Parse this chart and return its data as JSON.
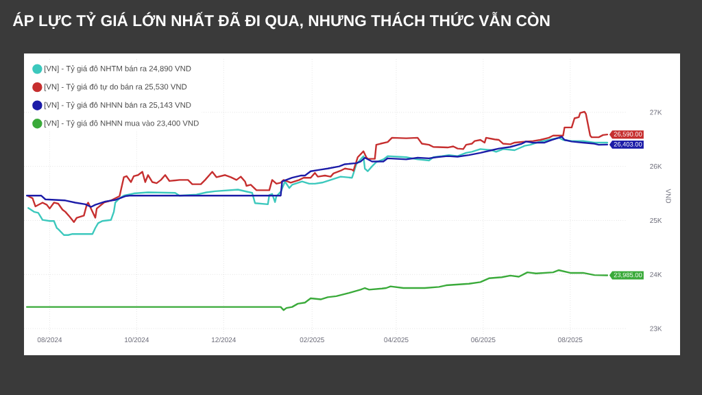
{
  "chart_data": {
    "type": "line",
    "title": "ÁP LỰC TỶ GIÁ LỚN NHẤT ĐÃ ĐI QUA, NHƯNG THÁCH THỨC VẪN CÒN",
    "ylabel": "VND",
    "xlim": [
      "2024-07-14",
      "2025-09-10"
    ],
    "ylim": [
      22900,
      28000
    ],
    "xticks": [
      {
        "value": "2024-08-01",
        "label": "08/2024"
      },
      {
        "value": "2024-10-01",
        "label": "10/2024"
      },
      {
        "value": "2024-12-01",
        "label": "12/2024"
      },
      {
        "value": "2025-02-01",
        "label": "02/2025"
      },
      {
        "value": "2025-04-01",
        "label": "04/2025"
      },
      {
        "value": "2025-06-01",
        "label": "06/2025"
      },
      {
        "value": "2025-08-01",
        "label": "08/2025"
      }
    ],
    "yticks": [
      {
        "value": 23000,
        "label": "23K"
      },
      {
        "value": 24000,
        "label": "24K"
      },
      {
        "value": 25000,
        "label": "25K"
      },
      {
        "value": 26000,
        "label": "26K"
      },
      {
        "value": 27000,
        "label": "27K"
      }
    ],
    "grid": true,
    "legend": "top left",
    "series": [
      {
        "name": "[VN] - Tỷ giá đô NHTM bán ra 24,890 VND",
        "color": "#3cc8bd",
        "x": [
          "2024-07-17",
          "2024-07-21",
          "2024-07-24",
          "2024-07-27",
          "2024-08-01",
          "2024-08-04",
          "2024-08-06",
          "2024-08-07",
          "2024-08-11",
          "2024-08-14",
          "2024-08-17",
          "2024-08-22",
          "2024-08-31",
          "2024-09-02",
          "2024-09-04",
          "2024-09-07",
          "2024-09-13",
          "2024-09-15",
          "2024-09-16",
          "2024-09-19",
          "2024-09-22",
          "2024-09-29",
          "2024-10-09",
          "2024-10-28",
          "2024-10-31",
          "2024-11-12",
          "2024-11-19",
          "2024-11-25",
          "2024-12-11",
          "2024-12-21",
          "2024-12-23",
          "2025-01-01",
          "2025-01-02",
          "2025-01-04",
          "2025-01-06",
          "2025-01-07",
          "2025-01-10",
          "2025-01-13",
          "2025-01-16",
          "2025-01-18",
          "2025-01-25",
          "2025-01-30",
          "2025-02-03",
          "2025-02-08",
          "2025-02-14",
          "2025-02-21",
          "2025-03-01",
          "2025-03-02",
          "2025-03-04",
          "2025-03-09",
          "2025-03-10",
          "2025-03-12",
          "2025-03-15",
          "2025-03-18",
          "2025-03-23",
          "2025-03-26",
          "2025-04-08",
          "2025-04-16",
          "2025-04-24",
          "2025-04-27",
          "2025-05-03",
          "2025-05-08",
          "2025-05-14",
          "2025-05-20",
          "2025-05-24",
          "2025-05-30",
          "2025-06-07",
          "2025-06-10",
          "2025-06-15",
          "2025-06-23",
          "2025-06-30",
          "2025-07-04",
          "2025-07-11",
          "2025-07-17",
          "2025-07-24",
          "2025-07-27",
          "2025-08-02",
          "2025-08-10",
          "2025-08-18",
          "2025-08-27"
        ],
        "values": [
          25230,
          25160,
          25140,
          25010,
          24990,
          24990,
          24860,
          24840,
          24730,
          24730,
          24750,
          24750,
          24750,
          24860,
          24950,
          24990,
          25010,
          25160,
          25330,
          25410,
          25460,
          25500,
          25520,
          25510,
          25460,
          25480,
          25520,
          25540,
          25570,
          25510,
          25320,
          25300,
          25470,
          25490,
          25340,
          25450,
          25530,
          25720,
          25600,
          25660,
          25720,
          25680,
          25680,
          25700,
          25750,
          25810,
          25790,
          25870,
          26040,
          26190,
          25960,
          25910,
          26000,
          26080,
          26130,
          26190,
          26170,
          26130,
          26110,
          26170,
          26190,
          26210,
          26190,
          26250,
          26270,
          26320,
          26300,
          26270,
          26320,
          26300,
          26380,
          26400,
          26460,
          26490,
          26530,
          26490,
          26470,
          26470,
          26440,
          26440
        ]
      },
      {
        "name": "[VN] - Tỷ giá đô tự do bán ra 25,530 VND",
        "color": "#c62f2f",
        "x": [
          "2024-07-17",
          "2024-07-20",
          "2024-07-22",
          "2024-07-27",
          "2024-07-30",
          "2024-08-01",
          "2024-08-04",
          "2024-08-07",
          "2024-08-10",
          "2024-08-12",
          "2024-08-15",
          "2024-08-18",
          "2024-08-20",
          "2024-08-25",
          "2024-08-27",
          "2024-08-28",
          "2024-08-31",
          "2024-09-02",
          "2024-09-03",
          "2024-09-08",
          "2024-09-13",
          "2024-09-19",
          "2024-09-22",
          "2024-09-24",
          "2024-09-27",
          "2024-09-29",
          "2024-10-02",
          "2024-10-05",
          "2024-10-07",
          "2024-10-09",
          "2024-10-12",
          "2024-10-15",
          "2024-10-18",
          "2024-10-21",
          "2024-10-24",
          "2024-10-31",
          "2024-11-06",
          "2024-11-09",
          "2024-11-15",
          "2024-11-18",
          "2024-11-21",
          "2024-11-23",
          "2024-11-26",
          "2024-12-02",
          "2024-12-06",
          "2024-12-10",
          "2024-12-13",
          "2024-12-16",
          "2024-12-17",
          "2024-12-20",
          "2024-12-24",
          "2025-01-02",
          "2025-01-04",
          "2025-01-07",
          "2025-01-10",
          "2025-01-12",
          "2025-01-17",
          "2025-01-23",
          "2025-01-26",
          "2025-01-31",
          "2025-02-03",
          "2025-02-05",
          "2025-02-10",
          "2025-02-14",
          "2025-02-16",
          "2025-02-21",
          "2025-02-24",
          "2025-03-01",
          "2025-03-02",
          "2025-03-05",
          "2025-03-09",
          "2025-03-11",
          "2025-03-12",
          "2025-03-17",
          "2025-03-18",
          "2025-03-21",
          "2025-03-26",
          "2025-03-29",
          "2025-04-08",
          "2025-04-16",
          "2025-04-19",
          "2025-04-24",
          "2025-04-27",
          "2025-05-07",
          "2025-05-11",
          "2025-05-14",
          "2025-05-18",
          "2025-05-20",
          "2025-05-24",
          "2025-05-26",
          "2025-05-30",
          "2025-06-02",
          "2025-06-03",
          "2025-06-09",
          "2025-06-12",
          "2025-06-15",
          "2025-06-20",
          "2025-06-23",
          "2025-07-01",
          "2025-07-06",
          "2025-07-11",
          "2025-07-17",
          "2025-07-20",
          "2025-07-27",
          "2025-07-28",
          "2025-08-02",
          "2025-08-04",
          "2025-08-07",
          "2025-08-08",
          "2025-08-11",
          "2025-08-12",
          "2025-08-15",
          "2025-08-16",
          "2025-08-21",
          "2025-08-24",
          "2025-08-27"
        ],
        "values": [
          25450,
          25410,
          25260,
          25330,
          25290,
          25220,
          25330,
          25310,
          25200,
          25160,
          25070,
          24970,
          25050,
          25090,
          25290,
          25330,
          25160,
          25050,
          25220,
          25330,
          25370,
          25450,
          25800,
          25820,
          25710,
          25820,
          25840,
          25900,
          25710,
          25840,
          25710,
          25690,
          25750,
          25840,
          25730,
          25750,
          25750,
          25670,
          25670,
          25750,
          25840,
          25900,
          25800,
          25840,
          25800,
          25750,
          25810,
          25720,
          25640,
          25660,
          25560,
          25560,
          25750,
          25680,
          25700,
          25750,
          25700,
          25750,
          25790,
          25790,
          25880,
          25810,
          25830,
          25810,
          25870,
          25920,
          25960,
          25940,
          25920,
          26170,
          26280,
          26170,
          26140,
          26140,
          26400,
          26420,
          26450,
          26530,
          26520,
          26530,
          26420,
          26400,
          26360,
          26350,
          26370,
          26330,
          26320,
          26400,
          26420,
          26470,
          26490,
          26440,
          26530,
          26500,
          26490,
          26420,
          26410,
          26440,
          26460,
          26470,
          26490,
          26530,
          26570,
          26570,
          26720,
          26720,
          26890,
          26910,
          26990,
          27010,
          26970,
          26570,
          26540,
          26540,
          26580,
          26590
        ],
        "value_labels": [
          null,
          null,
          null,
          null,
          null,
          null,
          null,
          null,
          null,
          null,
          null,
          null,
          null,
          null,
          null,
          null,
          null,
          null,
          null,
          null,
          null,
          null,
          null,
          null,
          null,
          null,
          null,
          null,
          null,
          null,
          null,
          null,
          null,
          null,
          null,
          null,
          null,
          null,
          null,
          null,
          null,
          null,
          null,
          null,
          null,
          null,
          null,
          null,
          null,
          null,
          null,
          null,
          null,
          null,
          null,
          null,
          null,
          null,
          null,
          null,
          null,
          null,
          null,
          null,
          null,
          null,
          null,
          null,
          null,
          null,
          null,
          null,
          null,
          null,
          null,
          null,
          null,
          null,
          null,
          null,
          null,
          null,
          null,
          null,
          null,
          null,
          null,
          null,
          null,
          null,
          null,
          null,
          null,
          null,
          null,
          null,
          null,
          null,
          null,
          null,
          null,
          null,
          null,
          null,
          null,
          null,
          null,
          null,
          null,
          null,
          null,
          null,
          null,
          null,
          null,
          "26,590.00"
        ]
      },
      {
        "name": "[VN] - Tỷ giá đô NHNN bán ra 25,143 VND",
        "color": "#1c1ca8",
        "x": [
          "2024-07-16",
          "2024-07-26",
          "2024-07-29",
          "2024-08-05",
          "2024-08-12",
          "2024-08-19",
          "2024-08-26",
          "2024-08-30",
          "2024-09-02",
          "2024-09-09",
          "2024-09-16",
          "2024-09-23",
          "2024-09-26",
          "2025-01-10",
          "2025-01-11",
          "2025-01-18",
          "2025-01-24",
          "2025-01-27",
          "2025-01-31",
          "2025-02-07",
          "2025-02-12",
          "2025-02-20",
          "2025-02-24",
          "2025-03-04",
          "2025-03-07",
          "2025-03-10",
          "2025-03-15",
          "2025-03-23",
          "2025-03-26",
          "2025-04-08",
          "2025-04-16",
          "2025-04-24",
          "2025-04-29",
          "2025-05-07",
          "2025-05-14",
          "2025-05-22",
          "2025-05-30",
          "2025-06-07",
          "2025-06-12",
          "2025-06-20",
          "2025-06-28",
          "2025-07-01",
          "2025-07-06",
          "2025-07-14",
          "2025-07-19",
          "2025-07-24",
          "2025-07-26",
          "2025-07-28",
          "2025-08-02",
          "2025-08-10",
          "2025-08-18",
          "2025-08-21",
          "2025-08-27"
        ],
        "values": [
          25460,
          25460,
          25390,
          25380,
          25370,
          25330,
          25300,
          25250,
          25290,
          25350,
          25380,
          25450,
          25460,
          25460,
          25720,
          25790,
          25830,
          25830,
          25910,
          25940,
          25960,
          26000,
          26040,
          26060,
          26090,
          26160,
          26090,
          26090,
          26150,
          26130,
          26160,
          26150,
          26170,
          26190,
          26180,
          26210,
          26250,
          26300,
          26330,
          26360,
          26420,
          26460,
          26440,
          26440,
          26490,
          26530,
          26550,
          26490,
          26460,
          26440,
          26420,
          26400,
          26403
        ],
        "value_labels": [
          null,
          null,
          null,
          null,
          null,
          null,
          null,
          null,
          null,
          null,
          null,
          null,
          null,
          null,
          null,
          null,
          null,
          null,
          null,
          null,
          null,
          null,
          null,
          null,
          null,
          null,
          null,
          null,
          null,
          null,
          null,
          null,
          null,
          null,
          null,
          null,
          null,
          null,
          null,
          null,
          null,
          null,
          null,
          null,
          null,
          null,
          null,
          null,
          null,
          null,
          null,
          null,
          "26,403.00"
        ]
      },
      {
        "name": "[VN] - Tỷ giá đô NHNN mua vào 23,400 VND",
        "color": "#3aaa3a",
        "x": [
          "2024-07-16",
          "2025-01-10",
          "2025-01-12",
          "2025-01-14",
          "2025-01-18",
          "2025-01-22",
          "2025-01-27",
          "2025-01-31",
          "2025-02-07",
          "2025-02-12",
          "2025-02-18",
          "2025-02-27",
          "2025-03-07",
          "2025-03-10",
          "2025-03-13",
          "2025-03-22",
          "2025-03-25",
          "2025-03-28",
          "2025-04-06",
          "2025-04-21",
          "2025-05-01",
          "2025-05-06",
          "2025-05-22",
          "2025-05-30",
          "2025-06-05",
          "2025-06-14",
          "2025-06-20",
          "2025-06-26",
          "2025-07-02",
          "2025-07-08",
          "2025-07-20",
          "2025-07-24",
          "2025-08-01",
          "2025-08-10",
          "2025-08-18",
          "2025-08-27"
        ],
        "values": [
          23400,
          23400,
          23340,
          23380,
          23400,
          23460,
          23480,
          23560,
          23540,
          23580,
          23600,
          23660,
          23720,
          23750,
          23720,
          23740,
          23750,
          23780,
          23750,
          23750,
          23770,
          23800,
          23830,
          23860,
          23930,
          23950,
          23980,
          23960,
          24040,
          24020,
          24040,
          24080,
          24030,
          24030,
          23990,
          23985
        ],
        "value_labels": [
          null,
          null,
          null,
          null,
          null,
          null,
          null,
          null,
          null,
          null,
          null,
          null,
          null,
          null,
          null,
          null,
          null,
          null,
          null,
          null,
          null,
          null,
          null,
          null,
          null,
          null,
          null,
          null,
          null,
          null,
          null,
          null,
          null,
          null,
          null,
          "23,985.00"
        ]
      }
    ]
  }
}
